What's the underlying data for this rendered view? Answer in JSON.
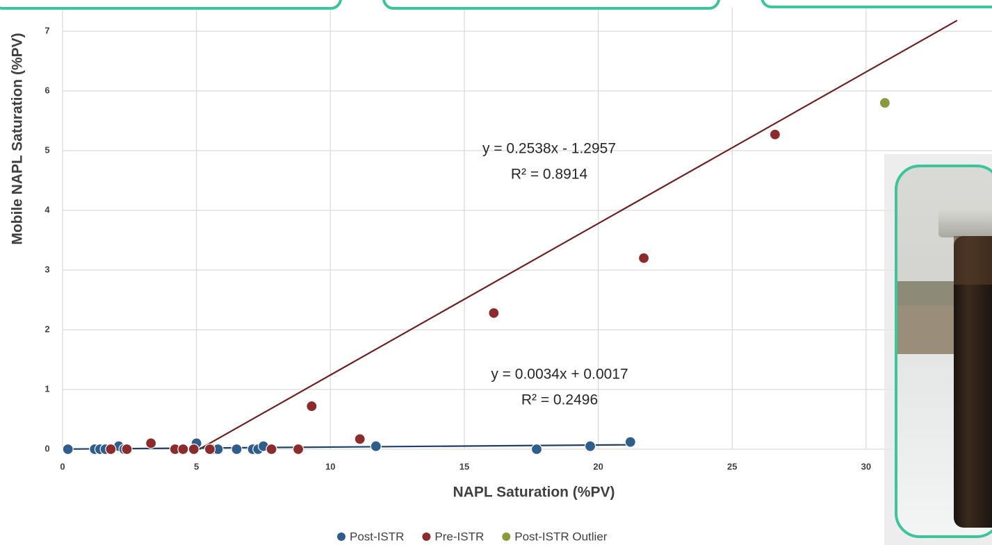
{
  "chart_data": {
    "type": "scatter",
    "xlabel": "NAPL Saturation (%PV)",
    "ylabel": "Mobile NAPL Saturation (%PV)",
    "xlim": [
      0,
      34.7
    ],
    "ylim": [
      0,
      7.4
    ],
    "xticks": [
      0,
      5,
      10,
      15,
      20,
      25,
      30
    ],
    "yticks": [
      0,
      1,
      2,
      3,
      4,
      5,
      6,
      7
    ],
    "grid": true,
    "legend": "bottom",
    "series": [
      {
        "name": "Post-ISTR",
        "color": "#2f5d8c",
        "x": [
          0.2,
          1.2,
          1.4,
          1.6,
          2.1,
          2.3,
          5.0,
          5.6,
          5.8,
          6.5,
          7.1,
          7.3,
          7.5,
          7.8,
          11.7,
          17.7,
          19.7,
          21.2
        ],
        "values": [
          0,
          0,
          0,
          0,
          0.05,
          0,
          0.1,
          0,
          0,
          0,
          0,
          0,
          0.05,
          0,
          0.05,
          0,
          0.05,
          0.12
        ]
      },
      {
        "name": "Pre-ISTR",
        "color": "#8c2b2b",
        "x": [
          1.8,
          2.4,
          3.3,
          4.2,
          4.5,
          4.9,
          5.5,
          7.8,
          8.8,
          9.3,
          11.1,
          16.1,
          21.7,
          26.6
        ],
        "values": [
          0,
          0,
          0.1,
          0,
          0,
          0,
          0,
          0,
          0,
          0.72,
          0.17,
          2.28,
          3.2,
          5.27
        ]
      },
      {
        "name": "Post-ISTR Outlier",
        "color": "#8a9a3c",
        "x": [
          30.7
        ],
        "values": [
          5.8
        ]
      }
    ],
    "trendlines": [
      {
        "equation": "y = 0.2538x - 1.2957",
        "r2": "R² = 0.8914",
        "slope": 0.2538,
        "intercept": -1.2957,
        "x_range": [
          5.1,
          33.4
        ],
        "color": "#6b2222"
      },
      {
        "equation": "y = 0.0034x + 0.0017",
        "r2": "R² = 0.2496",
        "slope": 0.0034,
        "intercept": 0.0017,
        "x_range": [
          0,
          21.2
        ],
        "color": "#1f3f66"
      }
    ]
  }
}
